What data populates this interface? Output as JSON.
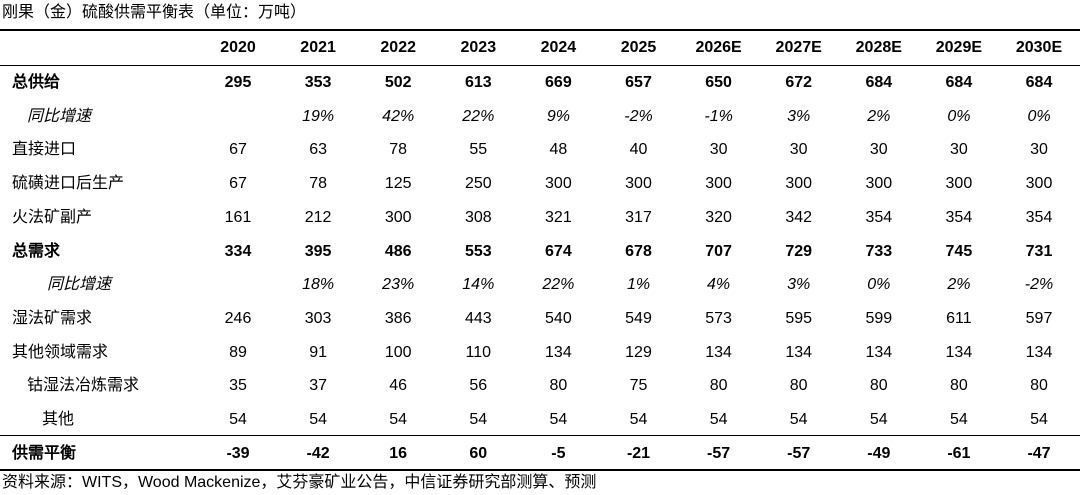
{
  "title": "刚果（金）硫酸供需平衡表（单位：万吨）",
  "columns": [
    "2020",
    "2021",
    "2022",
    "2023",
    "2024",
    "2025",
    "2026E",
    "2027E",
    "2028E",
    "2029E",
    "2030E"
  ],
  "rows": [
    {
      "label": "总供给",
      "values": [
        "295",
        "353",
        "502",
        "613",
        "669",
        "657",
        "650",
        "672",
        "684",
        "684",
        "684"
      ]
    },
    {
      "label": "同比增速",
      "values": [
        null,
        "19%",
        "42%",
        "22%",
        "9%",
        "-2%",
        "-1%",
        "3%",
        "2%",
        "0%",
        "0%"
      ]
    },
    {
      "label": "直接进口",
      "values": [
        "67",
        "63",
        "78",
        "55",
        "48",
        "40",
        "30",
        "30",
        "30",
        "30",
        "30"
      ]
    },
    {
      "label": "硫磺进口后生产",
      "values": [
        "67",
        "78",
        "125",
        "250",
        "300",
        "300",
        "300",
        "300",
        "300",
        "300",
        "300"
      ]
    },
    {
      "label": "火法矿副产",
      "values": [
        "161",
        "212",
        "300",
        "308",
        "321",
        "317",
        "320",
        "342",
        "354",
        "354",
        "354"
      ]
    },
    {
      "label": "总需求",
      "values": [
        "334",
        "395",
        "486",
        "553",
        "674",
        "678",
        "707",
        "729",
        "733",
        "745",
        "731"
      ]
    },
    {
      "label": "同比增速",
      "values": [
        null,
        "18%",
        "23%",
        "14%",
        "22%",
        "1%",
        "4%",
        "3%",
        "0%",
        "2%",
        "-2%"
      ]
    },
    {
      "label": "湿法矿需求",
      "values": [
        "246",
        "303",
        "386",
        "443",
        "540",
        "549",
        "573",
        "595",
        "599",
        "611",
        "597"
      ]
    },
    {
      "label": "其他领域需求",
      "values": [
        "89",
        "91",
        "100",
        "110",
        "134",
        "129",
        "134",
        "134",
        "134",
        "134",
        "134"
      ]
    },
    {
      "label": "钴湿法冶炼需求",
      "values": [
        "35",
        "37",
        "46",
        "56",
        "80",
        "75",
        "80",
        "80",
        "80",
        "80",
        "80"
      ]
    },
    {
      "label": "其他",
      "values": [
        "54",
        "54",
        "54",
        "54",
        "54",
        "54",
        "54",
        "54",
        "54",
        "54",
        "54"
      ]
    },
    {
      "label": "供需平衡",
      "values": [
        "-39",
        "-42",
        "16",
        "60",
        "-5",
        "-21",
        "-57",
        "-57",
        "-49",
        "-61",
        "-47"
      ]
    }
  ],
  "source": "资料来源：WITS，Wood Mackenize，艾芬豪矿业公告，中信证券研究部测算、预测"
}
